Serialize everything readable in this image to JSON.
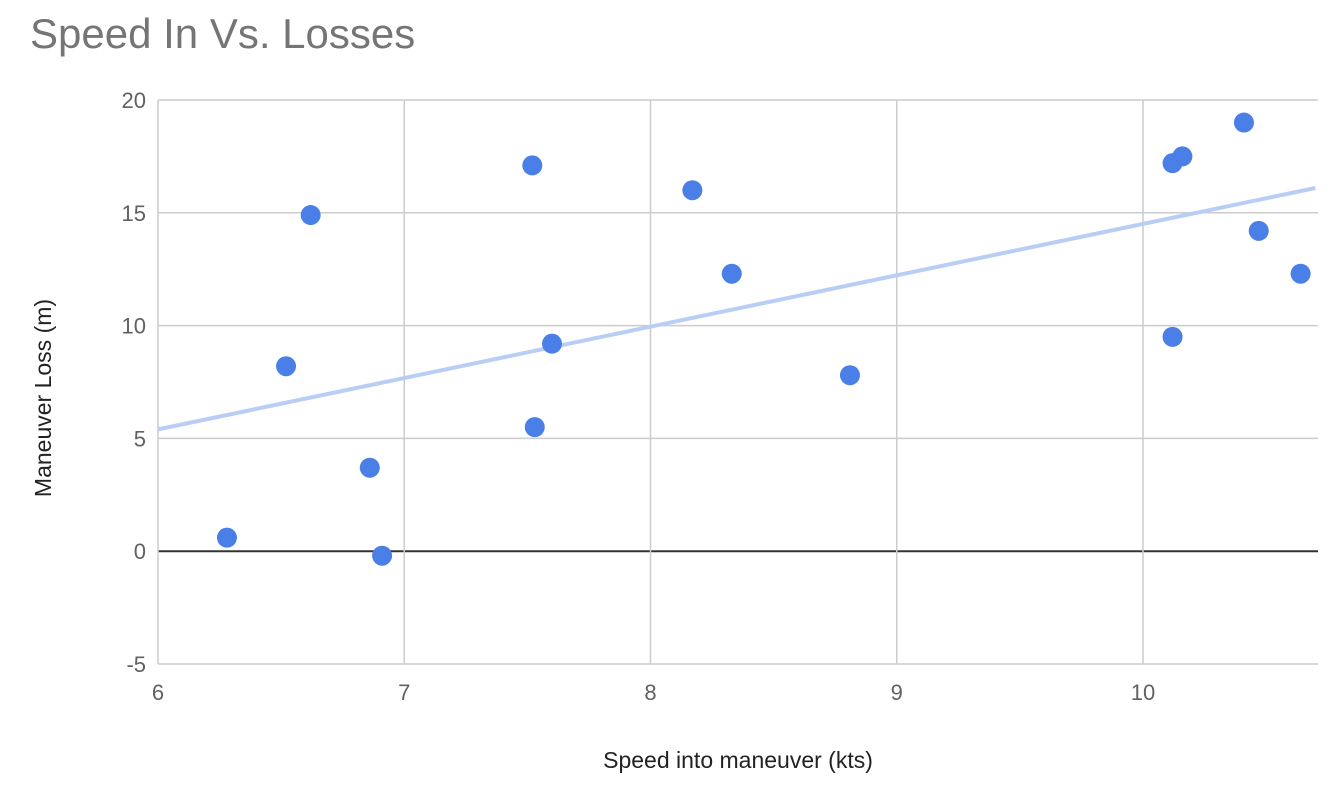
{
  "chart_data": {
    "type": "scatter",
    "title": "Speed In Vs. Losses",
    "xlabel": "Speed into maneuver (kts)",
    "ylabel": "Maneuver Loss (m)",
    "xlim": [
      6,
      10.7
    ],
    "ylim": [
      -5,
      20
    ],
    "x_ticks": [
      "6",
      "7",
      "8",
      "9",
      "10"
    ],
    "y_ticks": [
      "20",
      "15",
      "10",
      "5",
      "0",
      "-5"
    ],
    "grid": true,
    "legend": "none",
    "series": [
      {
        "points": [
          {
            "x": 6.28,
            "y": 0.6
          },
          {
            "x": 6.52,
            "y": 8.2
          },
          {
            "x": 6.62,
            "y": 14.9
          },
          {
            "x": 6.86,
            "y": 3.7
          },
          {
            "x": 6.91,
            "y": -0.2
          },
          {
            "x": 7.52,
            "y": 17.1
          },
          {
            "x": 7.53,
            "y": 5.5
          },
          {
            "x": 7.6,
            "y": 9.2
          },
          {
            "x": 8.17,
            "y": 16.0
          },
          {
            "x": 8.33,
            "y": 12.3
          },
          {
            "x": 8.81,
            "y": 7.8
          },
          {
            "x": 10.12,
            "y": 17.2
          },
          {
            "x": 10.16,
            "y": 17.5
          },
          {
            "x": 10.12,
            "y": 9.5
          },
          {
            "x": 10.41,
            "y": 19.0
          },
          {
            "x": 10.47,
            "y": 14.2
          },
          {
            "x": 10.64,
            "y": 12.3
          }
        ]
      }
    ],
    "trendline": {
      "type": "linear",
      "from": {
        "x": 6.0,
        "y": 5.4
      },
      "to": {
        "x": 10.7,
        "y": 16.1
      }
    },
    "colors": {
      "points": "#4a7fe8",
      "trendline": "#b9cdf5",
      "grid": "#cccccc",
      "zero_line": "#333333"
    }
  }
}
